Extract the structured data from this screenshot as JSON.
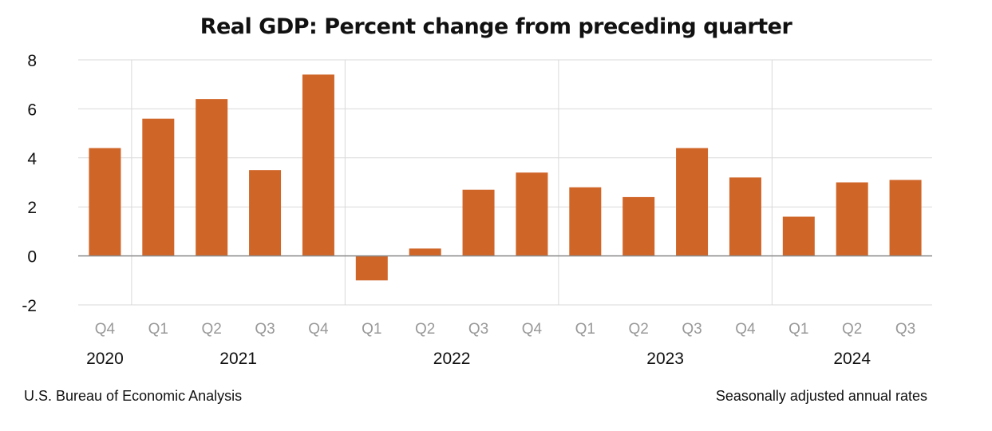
{
  "chart_data": {
    "type": "bar",
    "title": "Real GDP:  Percent change from preceding quarter",
    "categories": [
      "Q4",
      "Q1",
      "Q2",
      "Q3",
      "Q4",
      "Q1",
      "Q2",
      "Q3",
      "Q4",
      "Q1",
      "Q2",
      "Q3",
      "Q4",
      "Q1",
      "Q2",
      "Q3"
    ],
    "years": [
      {
        "label": "2020",
        "span": [
          0,
          0
        ]
      },
      {
        "label": "2021",
        "span": [
          1,
          4
        ]
      },
      {
        "label": "2022",
        "span": [
          5,
          8
        ]
      },
      {
        "label": "2023",
        "span": [
          9,
          12
        ]
      },
      {
        "label": "2024",
        "span": [
          13,
          15
        ]
      }
    ],
    "values": [
      4.4,
      5.6,
      6.4,
      3.5,
      7.4,
      -1.0,
      0.3,
      2.7,
      3.4,
      2.8,
      2.4,
      4.4,
      3.2,
      1.6,
      3.0,
      3.1
    ],
    "ylim": [
      -2,
      8
    ],
    "yticks": [
      -2,
      0,
      2,
      4,
      6,
      8
    ],
    "grid": true,
    "xlabel": "",
    "ylabel": "",
    "bar_color": "#D06528"
  },
  "footer": {
    "source": "U.S. Bureau of Economic Analysis",
    "note": "Seasonally adjusted annual rates"
  }
}
